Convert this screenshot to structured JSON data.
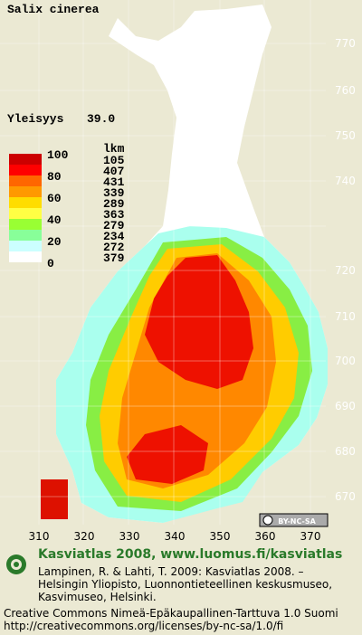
{
  "header": {
    "title": "Salix cinerea",
    "frequency_label": "Yleisyys",
    "frequency": "39.0"
  },
  "legend": {
    "scale_labels": [
      "100",
      "80",
      "60",
      "40",
      "20",
      "0"
    ],
    "count_header": "lkm",
    "counts": [
      "105",
      "407",
      "431",
      "339",
      "289",
      "363",
      "279",
      "234",
      "272",
      "379"
    ]
  },
  "grid": {
    "northing_labels": [
      "770",
      "760",
      "750",
      "740",
      "720",
      "710",
      "700",
      "690",
      "680",
      "670"
    ],
    "easting_labels": [
      "310",
      "320",
      "330",
      "340",
      "350",
      "360",
      "370"
    ]
  },
  "license_badge": "BY-NC-SA",
  "footer": {
    "title": "Kasviatlas 2008, www.luomus.fi/kasviatlas",
    "citation": [
      "Lampinen, R. & Lahti, T. 2009: Kasviatlas 2008. –",
      "Helsingin Yliopisto, Luonnontieteellinen keskusmuseo,",
      "Kasvimuseo, Helsinki."
    ],
    "license": [
      "Creative Commons Nimeä-Epäkaupallinen-Tarttuva 1.0 Suomi",
      "http://creativecommons.org/licenses/by-nc-sa/1.0/fi"
    ]
  }
}
